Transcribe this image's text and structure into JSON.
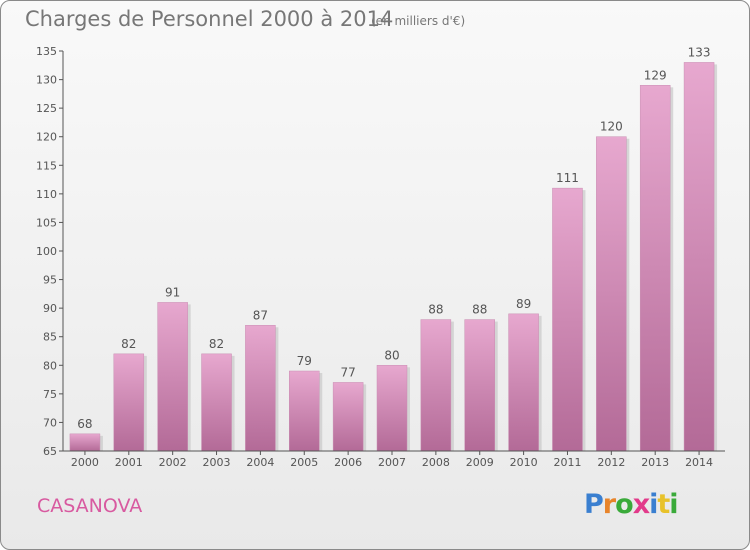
{
  "title": "Charges de Personnel 2000 à 2014",
  "subtitle": "(en milliers d'€)",
  "commune": "CASANOVA",
  "logo": {
    "text": "Proxiti",
    "colors": [
      "#3a7fd0",
      "#e8842a",
      "#3aaa3a",
      "#e23a8a",
      "#3a7fd0",
      "#e8c22a",
      "#3aaa3a"
    ]
  },
  "colors": {
    "bar_top": "#e7a8cf",
    "bar_bottom": "#b36a97",
    "axis": "#555555",
    "text": "#555555"
  },
  "chart_data": {
    "type": "bar",
    "title": "Charges de Personnel 2000 à 2014",
    "subtitle": "(en milliers d'€)",
    "categories": [
      "2000",
      "2001",
      "2002",
      "2003",
      "2004",
      "2005",
      "2006",
      "2007",
      "2008",
      "2009",
      "2010",
      "2011",
      "2012",
      "2013",
      "2014"
    ],
    "values": [
      68,
      82,
      91,
      82,
      87,
      79,
      77,
      80,
      88,
      88,
      89,
      111,
      120,
      129,
      133
    ],
    "ylim": [
      65,
      135
    ],
    "yticks": [
      65,
      70,
      75,
      80,
      85,
      90,
      95,
      100,
      105,
      110,
      115,
      120,
      125,
      130,
      135
    ],
    "grid": false,
    "legend": "none"
  }
}
